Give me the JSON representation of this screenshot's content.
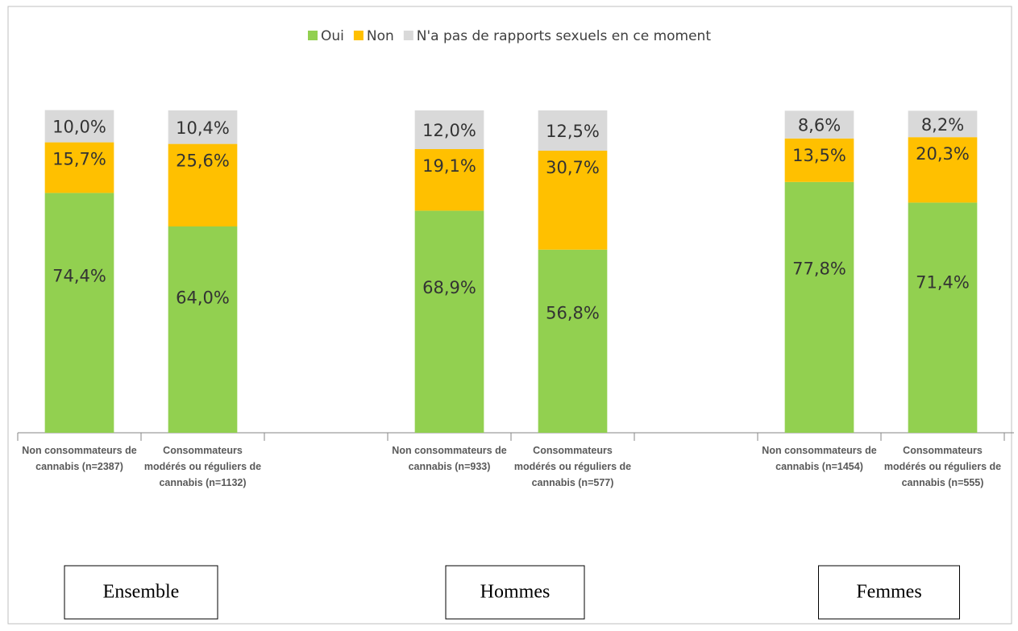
{
  "chart_data": {
    "type": "stacked_bar",
    "categories": [
      "Non consommateurs de cannabis (n=2387)",
      "Consommateurs modérés ou réguliers de cannabis (n=1132)",
      null,
      "Non consommateurs de cannabis (n=933)",
      "Consommateurs modérés ou réguliers de cannabis (n=577)",
      null,
      "Non consommateurs de cannabis (n=1454)",
      "Consommateurs modérés ou réguliers de cannabis (n=555)"
    ],
    "series": [
      {
        "name": "Oui",
        "color": "#92d050",
        "values": [
          74.4,
          64.0,
          null,
          68.9,
          56.8,
          null,
          77.8,
          71.4
        ],
        "value_labels": [
          "74,4%",
          "64,0%",
          null,
          "68,9%",
          "56,8%",
          null,
          "77,8%",
          "71,4%"
        ]
      },
      {
        "name": "Non",
        "color": "#ffc000",
        "values": [
          15.7,
          25.6,
          null,
          19.1,
          30.7,
          null,
          13.5,
          20.3
        ],
        "value_labels": [
          "15,7%",
          "25,6%",
          null,
          "19,1%",
          "30,7%",
          null,
          "13,5%",
          "20,3%"
        ]
      },
      {
        "name": "N'a pas de rapports sexuels en ce moment",
        "color": "#d9d9d9",
        "values": [
          10.0,
          10.4,
          null,
          12.0,
          12.5,
          null,
          8.6,
          8.2
        ],
        "value_labels": [
          "10,0%",
          "10,4%",
          null,
          "12,0%",
          "12,5%",
          null,
          "8,6%",
          "8,2%"
        ]
      }
    ],
    "ylim": [
      0,
      100
    ],
    "legend": "top",
    "groups": [
      "Ensemble",
      "Hommes",
      "Femmes"
    ]
  }
}
